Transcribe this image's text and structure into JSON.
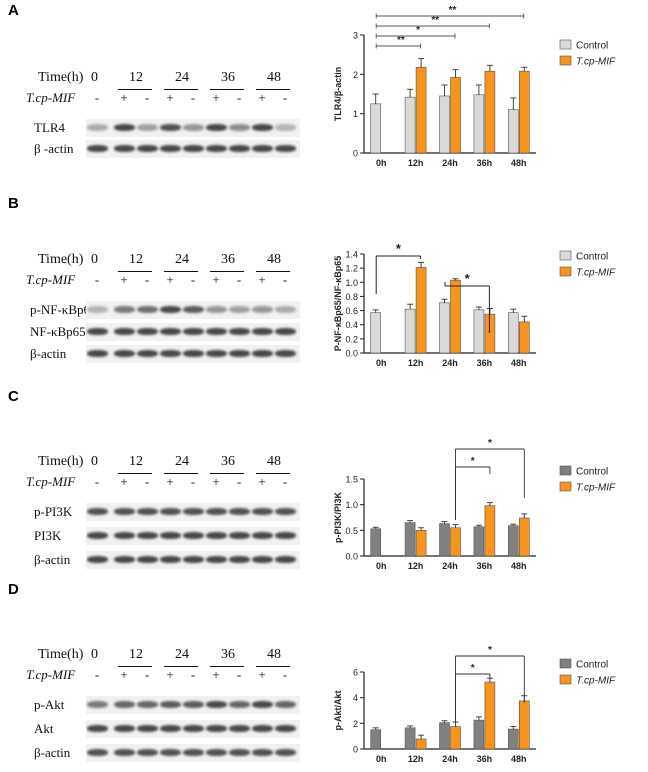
{
  "panels": [
    {
      "letter": "A",
      "blot": {
        "time_label": "Time(h)",
        "times": [
          "0",
          "12",
          "24",
          "36",
          "48"
        ],
        "treatment_label": "T.cp-MIF",
        "treatment_signs": [
          "-",
          "+",
          "-",
          "+",
          "-",
          "+",
          "-",
          "+",
          "-"
        ],
        "rows": [
          "TLR4",
          "β -actin"
        ],
        "band_intensity": [
          [
            0.35,
            0.85,
            0.4,
            0.8,
            0.45,
            0.85,
            0.5,
            0.85,
            0.3
          ],
          [
            0.85,
            0.85,
            0.85,
            0.85,
            0.85,
            0.85,
            0.85,
            0.85,
            0.85
          ]
        ]
      },
      "chart_data": {
        "type": "bar",
        "ylabel": "TLR4/β-actin",
        "ylim": [
          0,
          3
        ],
        "yticks": [
          "0",
          "1",
          "2",
          "3"
        ],
        "categories": [
          "0h",
          "12h",
          "24h",
          "36h",
          "48h"
        ],
        "series": [
          {
            "name": "Control",
            "color": "#d9d9d9",
            "values": [
              1.25,
              1.42,
              1.45,
              1.48,
              1.1
            ],
            "errors": [
              0.25,
              0.2,
              0.28,
              0.25,
              0.3
            ]
          },
          {
            "name": "T.cp-MIF",
            "color": "#f7941d",
            "values": [
              null,
              2.18,
              1.92,
              2.08,
              2.08
            ],
            "errors": [
              null,
              0.22,
              0.2,
              0.15,
              0.1
            ]
          }
        ],
        "significance": [
          {
            "label": "**",
            "from": "0h",
            "to": "12h"
          },
          {
            "label": "*",
            "from": "0h",
            "to": "24h"
          },
          {
            "label": "**",
            "from": "0h",
            "to": "36h"
          },
          {
            "label": "**",
            "from": "0h",
            "to": "48h"
          }
        ]
      }
    },
    {
      "letter": "B",
      "blot": {
        "time_label": "Time(h)",
        "times": [
          "0",
          "12",
          "24",
          "36",
          "48"
        ],
        "treatment_label": "T.cp-MIF",
        "treatment_signs": [
          "-",
          "+",
          "-",
          "+",
          "-",
          "+",
          "-",
          "+",
          "-"
        ],
        "rows": [
          "p-NF-κBp65",
          "NF-κBp65",
          "β-actin"
        ],
        "band_intensity": [
          [
            0.3,
            0.6,
            0.65,
            0.85,
            0.75,
            0.45,
            0.4,
            0.45,
            0.35
          ],
          [
            0.85,
            0.85,
            0.85,
            0.85,
            0.85,
            0.85,
            0.85,
            0.85,
            0.85
          ],
          [
            0.85,
            0.85,
            0.85,
            0.85,
            0.85,
            0.85,
            0.85,
            0.85,
            0.85
          ]
        ]
      },
      "chart_data": {
        "type": "bar",
        "ylabel": "P-NF-κBp65/NF-κBp65",
        "ylim": [
          0,
          1.4
        ],
        "yticks": [
          "0.0",
          "0.2",
          "0.4",
          "0.6",
          "0.8",
          "1.0",
          "1.2",
          "1.4"
        ],
        "categories": [
          "0h",
          "12h",
          "24h",
          "36h",
          "48h"
        ],
        "series": [
          {
            "name": "Control",
            "color": "#d9d9d9",
            "values": [
              0.57,
              0.62,
              0.71,
              0.61,
              0.57
            ],
            "errors": [
              0.04,
              0.07,
              0.05,
              0.04,
              0.05
            ]
          },
          {
            "name": "T.cp-MIF",
            "color": "#f7941d",
            "values": [
              null,
              1.21,
              1.03,
              0.55,
              0.44
            ],
            "errors": [
              null,
              0.07,
              0.02,
              0.08,
              0.08
            ]
          }
        ],
        "significance": [
          {
            "label": "*",
            "from": "0h",
            "to": "12h"
          },
          {
            "label": "*",
            "from": "24h",
            "to": "36h"
          }
        ]
      }
    },
    {
      "letter": "C",
      "blot": {
        "time_label": "Time(h)",
        "times": [
          "0",
          "12",
          "24",
          "36",
          "48"
        ],
        "treatment_label": "T.cp-MIF",
        "treatment_signs": [
          "-",
          "+",
          "-",
          "+",
          "-",
          "+",
          "-",
          "+",
          "-"
        ],
        "rows": [
          "p-PI3K",
          "PI3K",
          "β-actin"
        ],
        "band_intensity": [
          [
            0.8,
            0.8,
            0.8,
            0.8,
            0.8,
            0.8,
            0.8,
            0.8,
            0.8
          ],
          [
            0.85,
            0.85,
            0.85,
            0.85,
            0.85,
            0.85,
            0.85,
            0.85,
            0.85
          ],
          [
            0.85,
            0.85,
            0.85,
            0.85,
            0.85,
            0.85,
            0.85,
            0.85,
            0.85
          ]
        ]
      },
      "chart_data": {
        "type": "bar",
        "ylabel": "p-PI3K/PI3K",
        "ylim": [
          0,
          1.5
        ],
        "yticks": [
          "0.0",
          "0.5",
          "1.0",
          "1.5"
        ],
        "categories": [
          "0h",
          "12h",
          "24h",
          "36h",
          "48h"
        ],
        "series": [
          {
            "name": "Control",
            "color": "#808080",
            "values": [
              0.53,
              0.65,
              0.63,
              0.57,
              0.59
            ],
            "errors": [
              0.03,
              0.04,
              0.04,
              0.03,
              0.03
            ]
          },
          {
            "name": "T.cp-MIF",
            "color": "#f7941d",
            "values": [
              null,
              0.5,
              0.55,
              0.98,
              0.74
            ],
            "errors": [
              null,
              0.05,
              0.06,
              0.06,
              0.08
            ]
          }
        ],
        "significance": [
          {
            "label": "*",
            "from": "24h",
            "to": "36h"
          },
          {
            "label": "*",
            "from": "24h",
            "to": "48h"
          }
        ]
      }
    },
    {
      "letter": "D",
      "blot": {
        "time_label": "Time(h)",
        "times": [
          "0",
          "12",
          "24",
          "36",
          "48"
        ],
        "treatment_label": "T.cp-MIF",
        "treatment_signs": [
          "-",
          "+",
          "-",
          "+",
          "-",
          "+",
          "-",
          "+",
          "-"
        ],
        "rows": [
          "p-Akt",
          "Akt",
          "β-actin"
        ],
        "band_intensity": [
          [
            0.6,
            0.7,
            0.7,
            0.75,
            0.75,
            0.85,
            0.7,
            0.85,
            0.7
          ],
          [
            0.85,
            0.85,
            0.85,
            0.85,
            0.85,
            0.85,
            0.85,
            0.85,
            0.85
          ],
          [
            0.8,
            0.8,
            0.8,
            0.8,
            0.8,
            0.8,
            0.8,
            0.8,
            0.8
          ]
        ]
      },
      "chart_data": {
        "type": "bar",
        "ylabel": "p-Akt/Akt",
        "ylim": [
          0,
          6
        ],
        "yticks": [
          "0",
          "2",
          "4",
          "6"
        ],
        "categories": [
          "0h",
          "12h",
          "24h",
          "36h",
          "48h"
        ],
        "series": [
          {
            "name": "Control",
            "color": "#808080",
            "values": [
              1.5,
              1.65,
              2.05,
              2.25,
              1.55
            ],
            "errors": [
              0.15,
              0.15,
              0.15,
              0.25,
              0.2
            ]
          },
          {
            "name": "T.cp-MIF",
            "color": "#f7941d",
            "values": [
              null,
              0.78,
              1.75,
              5.22,
              3.75
            ],
            "errors": [
              null,
              0.3,
              0.35,
              0.3,
              0.4
            ]
          }
        ],
        "significance": [
          {
            "label": "*",
            "from": "24h",
            "to": "36h"
          },
          {
            "label": "*",
            "from": "24h",
            "to": "48h"
          }
        ]
      }
    }
  ]
}
